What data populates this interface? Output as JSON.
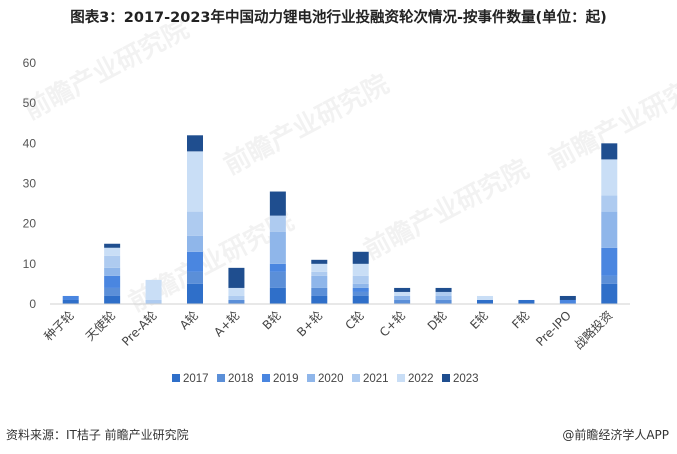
{
  "title": "图表3：2017-2023年中国动力锂电池行业投融资轮次情况-按事件数量(单位：起)",
  "source": "资料来源：IT桔子 前瞻产业研究院",
  "credit": "@前瞻经济学人APP",
  "watermark": "前瞻产业研究院",
  "colors": {
    "2017": "#2f6fc9",
    "2018": "#5b8fd8",
    "2019": "#4a86e0",
    "2020": "#8fb6ea",
    "2021": "#aecbf0",
    "2022": "#c9def6",
    "2023": "#1f4e8f"
  },
  "chart_data": {
    "type": "bar",
    "stacked": true,
    "categories": [
      "种子轮",
      "天使轮",
      "Pre-A轮",
      "A轮",
      "A+轮",
      "B轮",
      "B+轮",
      "C轮",
      "C+轮",
      "D轮",
      "E轮",
      "F轮",
      "Pre-IPO",
      "战略投资"
    ],
    "ylim": [
      0,
      60
    ],
    "yticks": [
      0,
      10,
      20,
      30,
      40,
      50,
      60
    ],
    "grid": false,
    "legend_position": "bottom",
    "series": [
      {
        "name": "2017",
        "values": [
          1,
          2,
          0,
          5,
          0,
          4,
          2,
          2,
          0,
          0,
          1,
          1,
          0,
          5
        ]
      },
      {
        "name": "2018",
        "values": [
          0,
          2,
          0,
          3,
          1,
          4,
          2,
          1,
          1,
          1,
          0,
          0,
          0,
          2
        ]
      },
      {
        "name": "2019",
        "values": [
          1,
          3,
          0,
          5,
          0,
          2,
          0,
          1,
          0,
          0,
          0,
          0,
          1,
          7
        ]
      },
      {
        "name": "2020",
        "values": [
          0,
          2,
          0,
          4,
          0,
          8,
          3,
          1,
          1,
          1,
          0,
          0,
          0,
          9
        ]
      },
      {
        "name": "2021",
        "values": [
          0,
          3,
          1,
          6,
          1,
          4,
          1,
          2,
          0,
          1,
          0,
          0,
          0,
          4
        ]
      },
      {
        "name": "2022",
        "values": [
          0,
          2,
          5,
          15,
          2,
          0,
          2,
          3,
          1,
          0,
          1,
          0,
          0,
          9
        ]
      },
      {
        "name": "2023",
        "values": [
          0,
          1,
          0,
          4,
          5,
          6,
          1,
          3,
          1,
          1,
          0,
          0,
          1,
          4
        ]
      }
    ]
  }
}
